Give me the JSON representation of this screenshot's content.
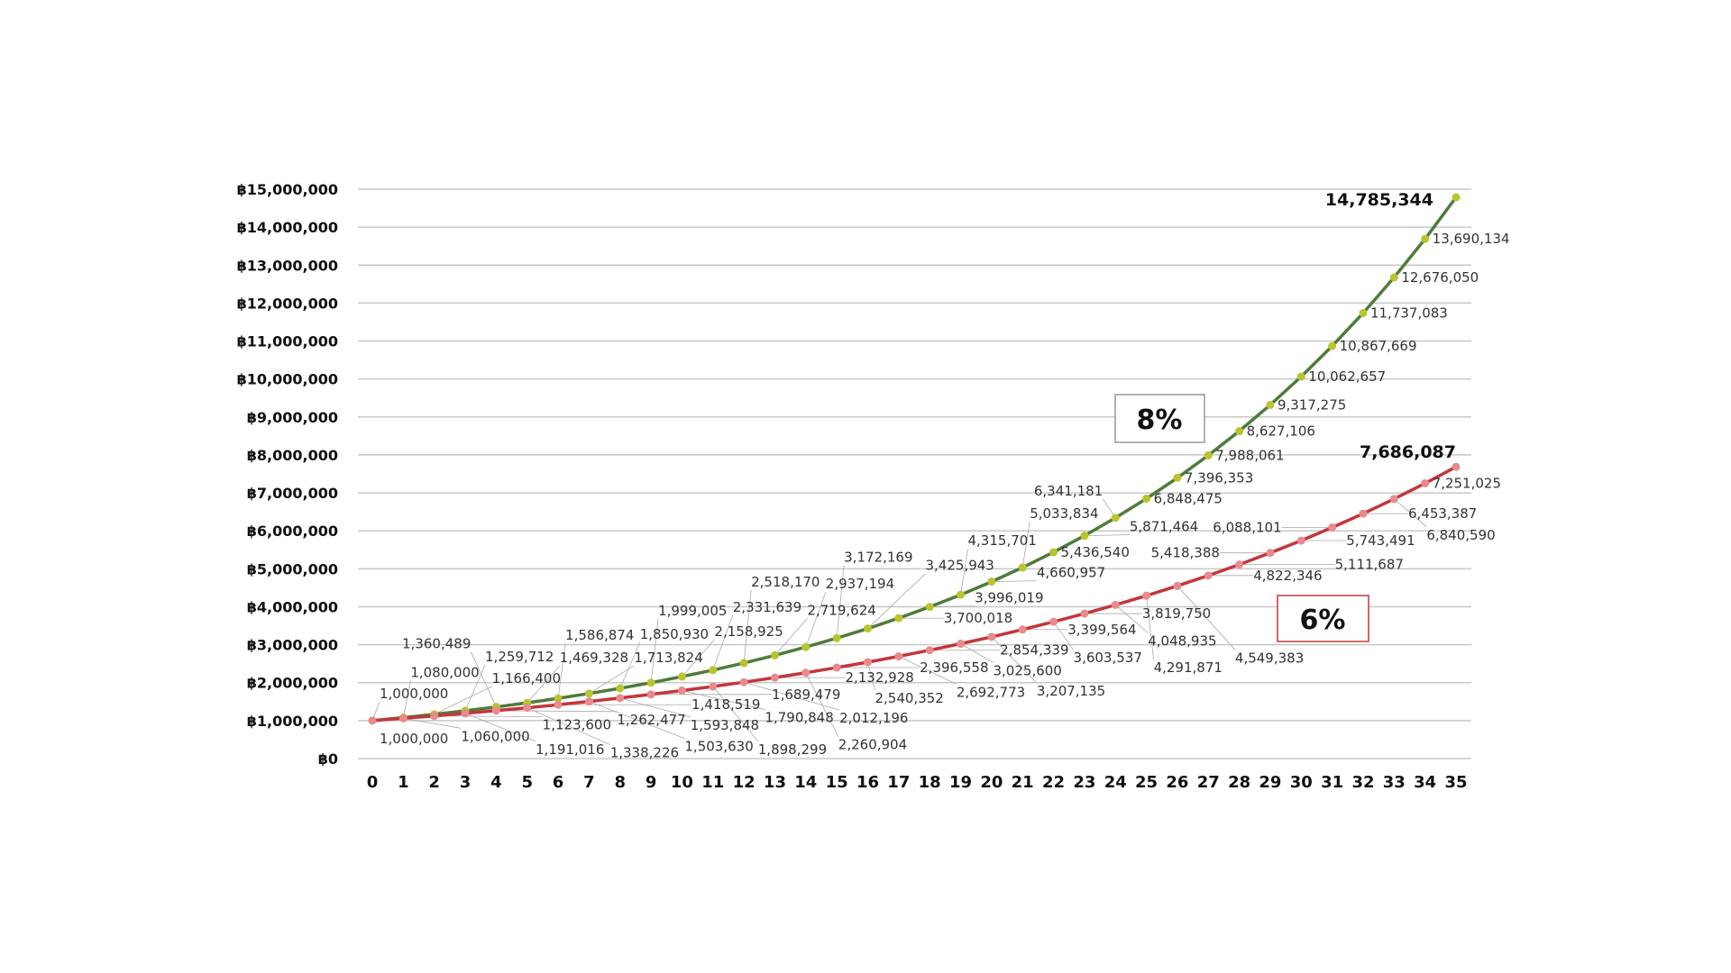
{
  "chart_data": {
    "type": "line",
    "title": "",
    "xlabel": "",
    "ylabel": "",
    "x": [
      0,
      1,
      2,
      3,
      4,
      5,
      6,
      7,
      8,
      9,
      10,
      11,
      12,
      13,
      14,
      15,
      16,
      17,
      18,
      19,
      20,
      21,
      22,
      23,
      24,
      25,
      26,
      27,
      28,
      29,
      30,
      31,
      32,
      33,
      34,
      35
    ],
    "ylim": [
      0,
      15000000
    ],
    "y_tick_labels": [
      "฿0",
      "฿1,000,000",
      "฿2,000,000",
      "฿3,000,000",
      "฿4,000,000",
      "฿5,000,000",
      "฿6,000,000",
      "฿7,000,000",
      "฿8,000,000",
      "฿9,000,000",
      "฿10,000,000",
      "฿11,000,000",
      "฿12,000,000",
      "฿13,000,000",
      "฿14,000,000",
      "฿15,000,000"
    ],
    "grid": true,
    "series": [
      {
        "name": "8%",
        "color": "#4f7b3b",
        "marker_color": "#b8c52e",
        "values": [
          1000000,
          1080000,
          1166400,
          1259712,
          1360489,
          1469328,
          1586874,
          1713824,
          1850930,
          1999005,
          2158925,
          2331639,
          2518170,
          2719624,
          2937194,
          3172169,
          3425943,
          3700018,
          3996019,
          4315701,
          4660957,
          5033834,
          5436540,
          5871464,
          6341181,
          6848475,
          7396353,
          7988061,
          8627106,
          9317275,
          10062657,
          10867669,
          11737083,
          12676050,
          13690134,
          14785344
        ],
        "final_label": "14,785,344"
      },
      {
        "name": "6%",
        "color": "#c2373c",
        "marker_color": "#e88a8e",
        "values": [
          1000000,
          1060000,
          1123600,
          1191016,
          1262477,
          1338226,
          1418519,
          1503630,
          1593848,
          1689479,
          1790848,
          1898299,
          2012196,
          2132928,
          2260904,
          2396558,
          2540352,
          2692773,
          2854339,
          3025600,
          3207135,
          3399564,
          3603537,
          3819750,
          4048935,
          4291871,
          4549383,
          4822346,
          5111687,
          5418388,
          5743491,
          6088101,
          6453387,
          6840590,
          7251025,
          7686087
        ],
        "final_label": "7,686,087"
      }
    ]
  }
}
